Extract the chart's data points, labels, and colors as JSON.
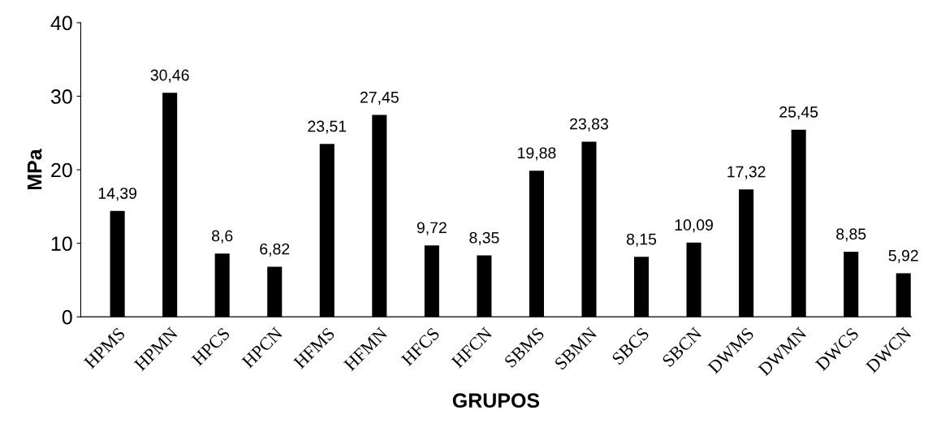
{
  "chart_data": {
    "type": "bar",
    "xlabel": "GRUPOS",
    "ylabel": "MPa",
    "categories": [
      "HPMS",
      "HPMN",
      "HPCS",
      "HPCN",
      "HFMS",
      "HFMN",
      "HFCS",
      "HFCN",
      "SBMS",
      "SBMN",
      "SBCS",
      "SBCN",
      "DWMS",
      "DWMN",
      "DWCS",
      "DWCN"
    ],
    "values": [
      14.39,
      30.46,
      8.6,
      6.82,
      23.51,
      27.45,
      9.72,
      8.35,
      19.88,
      23.83,
      8.15,
      10.09,
      17.32,
      25.45,
      8.85,
      5.92
    ],
    "value_labels": [
      "14,39",
      "30,46",
      "8,6",
      "6,82",
      "23,51",
      "27,45",
      "9,72",
      "8,35",
      "19,88",
      "23,83",
      "8,15",
      "10,09",
      "17,32",
      "25,45",
      "8,85",
      "5,92"
    ],
    "color": "#000000",
    "ylim": [
      0,
      40
    ],
    "yticks": [
      0,
      10,
      20,
      30,
      40
    ],
    "grid": false
  }
}
